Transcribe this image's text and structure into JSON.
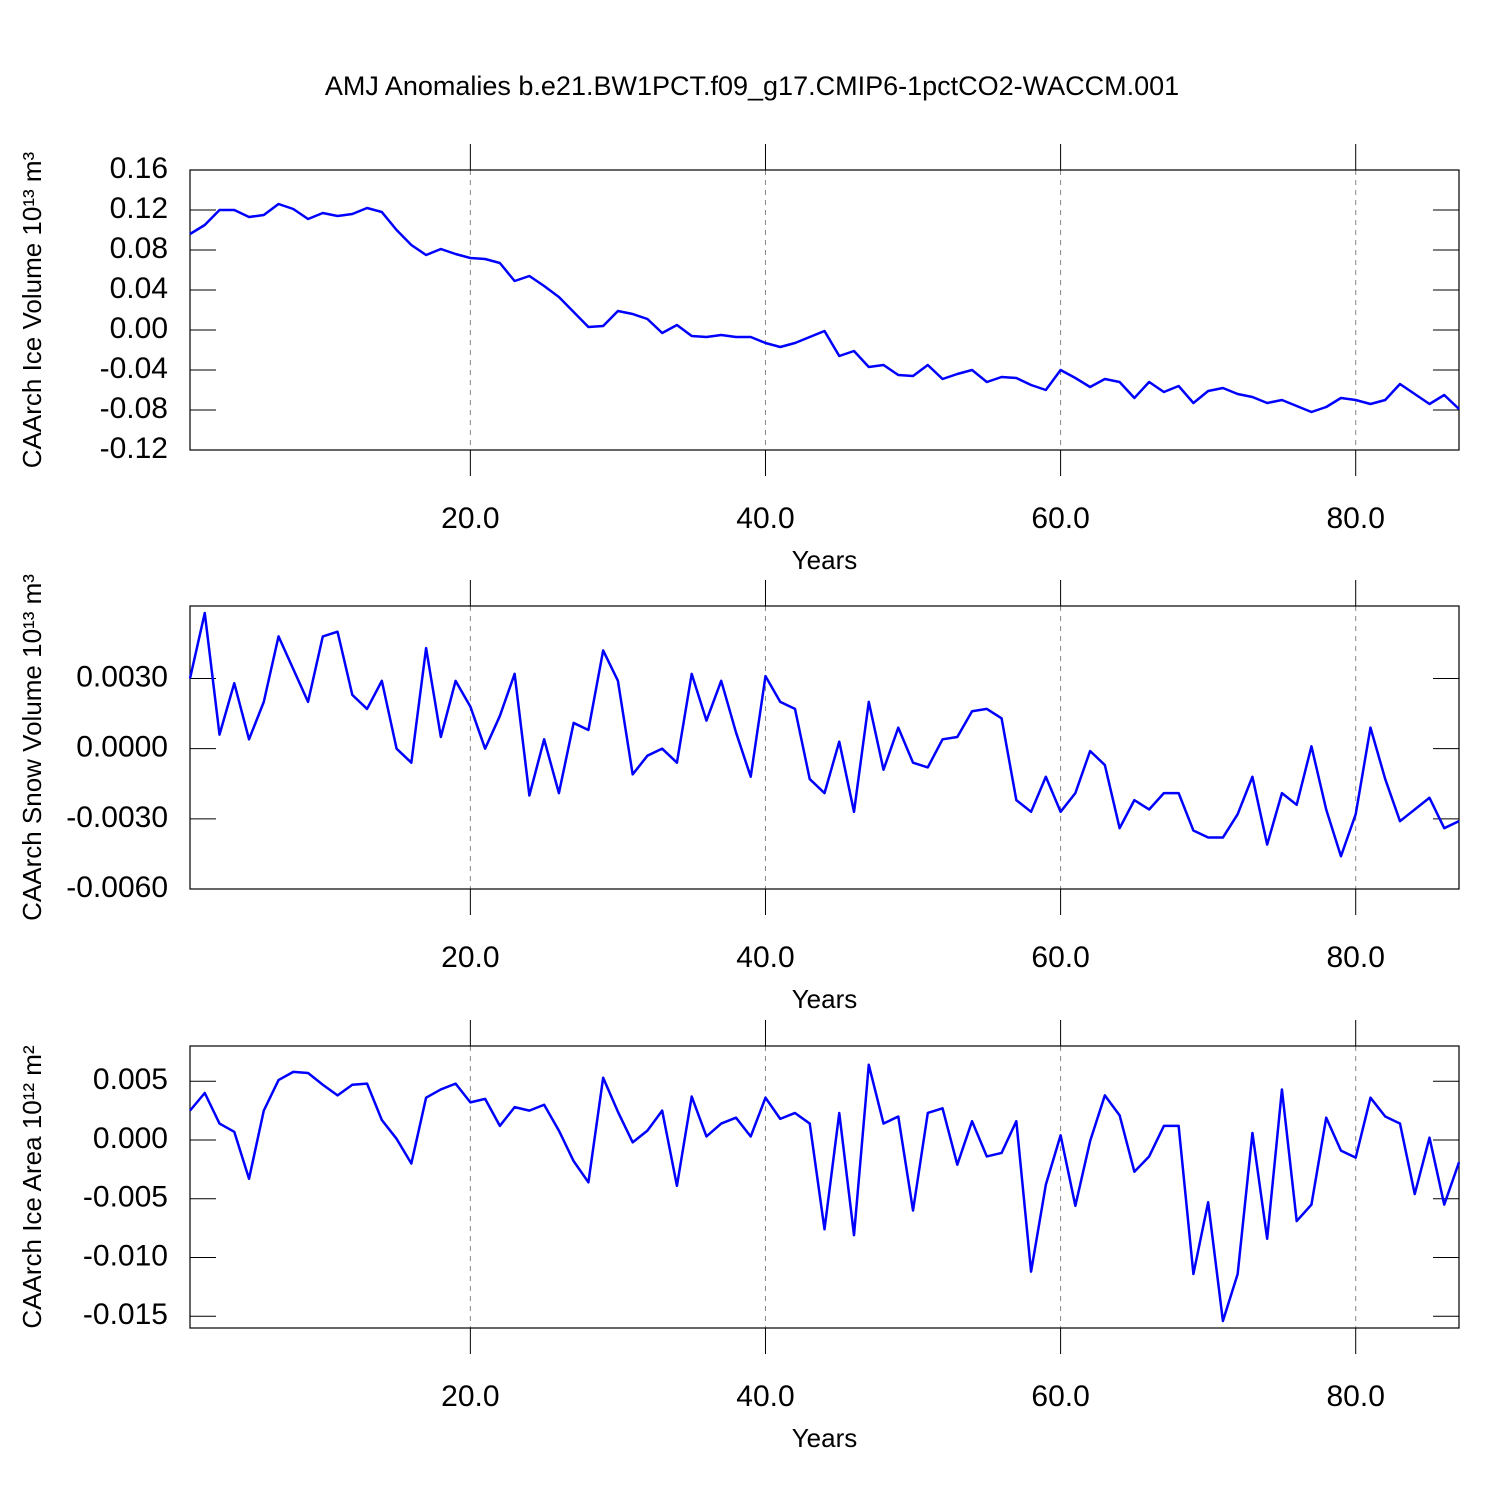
{
  "title": "AMJ Anomalies b.e21.BW1PCT.f09_g17.CMIP6-1pctCO2-WACCM.001",
  "chart_data": [
    {
      "type": "line",
      "ylabel": "CAArch Ice Volume 10¹³ m³",
      "xlabel": "Years",
      "color": "#0000ff",
      "xgrid": true,
      "x": [
        1,
        2,
        3,
        4,
        5,
        6,
        7,
        8,
        9,
        10,
        11,
        12,
        13,
        14,
        15,
        16,
        17,
        18,
        19,
        20,
        21,
        22,
        23,
        24,
        25,
        26,
        27,
        28,
        29,
        30,
        31,
        32,
        33,
        34,
        35,
        36,
        37,
        38,
        39,
        40,
        41,
        42,
        43,
        44,
        45,
        46,
        47,
        48,
        49,
        50,
        51,
        52,
        53,
        54,
        55,
        56,
        57,
        58,
        59,
        60,
        61,
        62,
        63,
        64,
        65,
        66,
        67,
        68,
        69,
        70,
        71,
        72,
        73,
        74,
        75,
        76,
        77,
        78,
        79,
        80,
        81,
        82,
        83,
        84,
        85,
        86,
        87
      ],
      "values": [
        0.096,
        0.105,
        0.12,
        0.12,
        0.113,
        0.115,
        0.126,
        0.121,
        0.111,
        0.117,
        0.114,
        0.116,
        0.122,
        0.118,
        0.1,
        0.085,
        0.075,
        0.081,
        0.076,
        0.072,
        0.071,
        0.067,
        0.049,
        0.054,
        0.044,
        0.033,
        0.018,
        0.003,
        0.004,
        0.019,
        0.016,
        0.011,
        -0.003,
        0.005,
        -0.006,
        -0.007,
        -0.005,
        -0.007,
        -0.007,
        -0.013,
        -0.017,
        -0.013,
        -0.007,
        -0.001,
        -0.026,
        -0.021,
        -0.037,
        -0.035,
        -0.045,
        -0.046,
        -0.035,
        -0.049,
        -0.044,
        -0.04,
        -0.052,
        -0.047,
        -0.048,
        -0.055,
        -0.06,
        -0.04,
        -0.048,
        -0.057,
        -0.049,
        -0.052,
        -0.068,
        -0.052,
        -0.062,
        -0.056,
        -0.073,
        -0.061,
        -0.058,
        -0.064,
        -0.067,
        -0.073,
        -0.07,
        -0.076,
        -0.082,
        -0.077,
        -0.068,
        -0.07,
        -0.074,
        -0.07,
        -0.054,
        -0.064,
        -0.074,
        -0.065,
        -0.079
      ],
      "xlim": [
        1,
        87
      ],
      "xticks": [
        {
          "value": 20,
          "label": "20.0"
        },
        {
          "value": 40,
          "label": "40.0"
        },
        {
          "value": 60,
          "label": "60.0"
        },
        {
          "value": 80,
          "label": "80.0"
        }
      ],
      "ylim": [
        -0.12,
        0.16
      ],
      "yticks": [
        0.16,
        0.12,
        0.08,
        0.04,
        {
          "value": 0,
          "label": "0.00"
        },
        -0.04,
        -0.08,
        -0.12
      ]
    },
    {
      "type": "line",
      "ylabel": "CAArch Snow Volume 10¹³ m³",
      "xlabel": "Years",
      "color": "#0000ff",
      "xgrid": true,
      "x": [
        1,
        2,
        3,
        4,
        5,
        6,
        7,
        8,
        9,
        10,
        11,
        12,
        13,
        14,
        15,
        16,
        17,
        18,
        19,
        20,
        21,
        22,
        23,
        24,
        25,
        26,
        27,
        28,
        29,
        30,
        31,
        32,
        33,
        34,
        35,
        36,
        37,
        38,
        39,
        40,
        41,
        42,
        43,
        44,
        45,
        46,
        47,
        48,
        49,
        50,
        51,
        52,
        53,
        54,
        55,
        56,
        57,
        58,
        59,
        60,
        61,
        62,
        63,
        64,
        65,
        66,
        67,
        68,
        69,
        70,
        71,
        72,
        73,
        74,
        75,
        76,
        77,
        78,
        79,
        80,
        81,
        82,
        83,
        84,
        85,
        86,
        87
      ],
      "values": [
        0.003,
        0.0058,
        0.0006,
        0.0028,
        0.0004,
        0.002,
        0.0048,
        0.0034,
        0.002,
        0.0048,
        0.005,
        0.0023,
        0.0017,
        0.0029,
        0.0,
        -0.0006,
        0.0043,
        0.0005,
        0.0029,
        0.0018,
        0.0,
        0.0014,
        0.0032,
        -0.002,
        0.0004,
        -0.0019,
        0.0011,
        0.0008,
        0.0042,
        0.0029,
        -0.0011,
        -0.0003,
        0.0,
        -0.0006,
        0.0032,
        0.0012,
        0.0029,
        0.0007,
        -0.0012,
        0.0031,
        0.002,
        0.0017,
        -0.0013,
        -0.0019,
        0.0003,
        -0.0027,
        0.002,
        -0.0009,
        0.0009,
        -0.0006,
        -0.0008,
        0.0004,
        0.0005,
        0.0016,
        0.0017,
        0.0013,
        -0.0022,
        -0.0027,
        -0.0012,
        -0.0027,
        -0.0019,
        -0.0001,
        -0.0007,
        -0.0034,
        -0.0022,
        -0.0026,
        -0.0019,
        -0.0019,
        -0.0035,
        -0.0038,
        -0.0038,
        -0.0028,
        -0.0012,
        -0.0041,
        -0.0019,
        -0.0024,
        0.0001,
        -0.0026,
        -0.0046,
        -0.0028,
        0.0009,
        -0.0013,
        -0.0031,
        -0.0026,
        -0.0021,
        -0.0034,
        -0.0031
      ],
      "xlim": [
        1,
        87
      ],
      "xticks": [
        {
          "value": 20,
          "label": "20.0"
        },
        {
          "value": 40,
          "label": "40.0"
        },
        {
          "value": 60,
          "label": "60.0"
        },
        {
          "value": 80,
          "label": "80.0"
        }
      ],
      "ylim": [
        -0.006,
        0.0061
      ],
      "yticks": [
        {
          "value": 0.003,
          "label": "0.0030"
        },
        {
          "value": 0,
          "label": "0.0000"
        },
        {
          "value": -0.003,
          "label": "-0.0030"
        },
        {
          "value": -0.006,
          "label": "-0.0060"
        }
      ]
    },
    {
      "type": "line",
      "ylabel": "CAArch Ice Area 10¹² m²",
      "xlabel": "Years",
      "color": "#0000ff",
      "xgrid": true,
      "x": [
        1,
        2,
        3,
        4,
        5,
        6,
        7,
        8,
        9,
        10,
        11,
        12,
        13,
        14,
        15,
        16,
        17,
        18,
        19,
        20,
        21,
        22,
        23,
        24,
        25,
        26,
        27,
        28,
        29,
        30,
        31,
        32,
        33,
        34,
        35,
        36,
        37,
        38,
        39,
        40,
        41,
        42,
        43,
        44,
        45,
        46,
        47,
        48,
        49,
        50,
        51,
        52,
        53,
        54,
        55,
        56,
        57,
        58,
        59,
        60,
        61,
        62,
        63,
        64,
        65,
        66,
        67,
        68,
        69,
        70,
        71,
        72,
        73,
        74,
        75,
        76,
        77,
        78,
        79,
        80,
        81,
        82,
        83,
        84,
        85,
        86,
        87
      ],
      "values": [
        0.0025,
        0.004,
        0.0014,
        0.0007,
        -0.0033,
        0.0025,
        0.0051,
        0.0058,
        0.0057,
        0.0047,
        0.0038,
        0.0047,
        0.0048,
        0.0017,
        0.0001,
        -0.002,
        0.0036,
        0.0043,
        0.0048,
        0.0032,
        0.0035,
        0.0012,
        0.0028,
        0.0025,
        0.003,
        0.0008,
        -0.0018,
        -0.0036,
        0.0053,
        0.0024,
        -0.0002,
        0.0008,
        0.0025,
        -0.0039,
        0.0037,
        0.0003,
        0.0014,
        0.0019,
        0.0003,
        0.0036,
        0.0018,
        0.0023,
        0.0014,
        -0.0076,
        0.0023,
        -0.0081,
        0.0064,
        0.0014,
        0.002,
        -0.006,
        0.0023,
        0.0027,
        -0.0021,
        0.0016,
        -0.0014,
        -0.0011,
        0.0016,
        -0.0112,
        -0.0038,
        0.0004,
        -0.0056,
        -0.0001,
        0.0038,
        0.0021,
        -0.0027,
        -0.0014,
        0.0012,
        0.0012,
        -0.0114,
        -0.0053,
        -0.0154,
        -0.0114,
        0.0006,
        -0.0084,
        0.0043,
        -0.0069,
        -0.0055,
        0.0019,
        -0.0009,
        -0.0015,
        0.0036,
        0.002,
        0.0014,
        -0.0046,
        0.0002,
        -0.0055,
        -0.0019
      ],
      "xlim": [
        1,
        87
      ],
      "xticks": [
        {
          "value": 20,
          "label": "20.0"
        },
        {
          "value": 40,
          "label": "40.0"
        },
        {
          "value": 60,
          "label": "60.0"
        },
        {
          "value": 80,
          "label": "80.0"
        }
      ],
      "ylim": [
        -0.016,
        0.008
      ],
      "yticks": [
        0.005,
        {
          "value": 0,
          "label": "0.000"
        },
        -0.005,
        {
          "value": -0.01,
          "label": "-0.010"
        },
        -0.015
      ]
    }
  ]
}
